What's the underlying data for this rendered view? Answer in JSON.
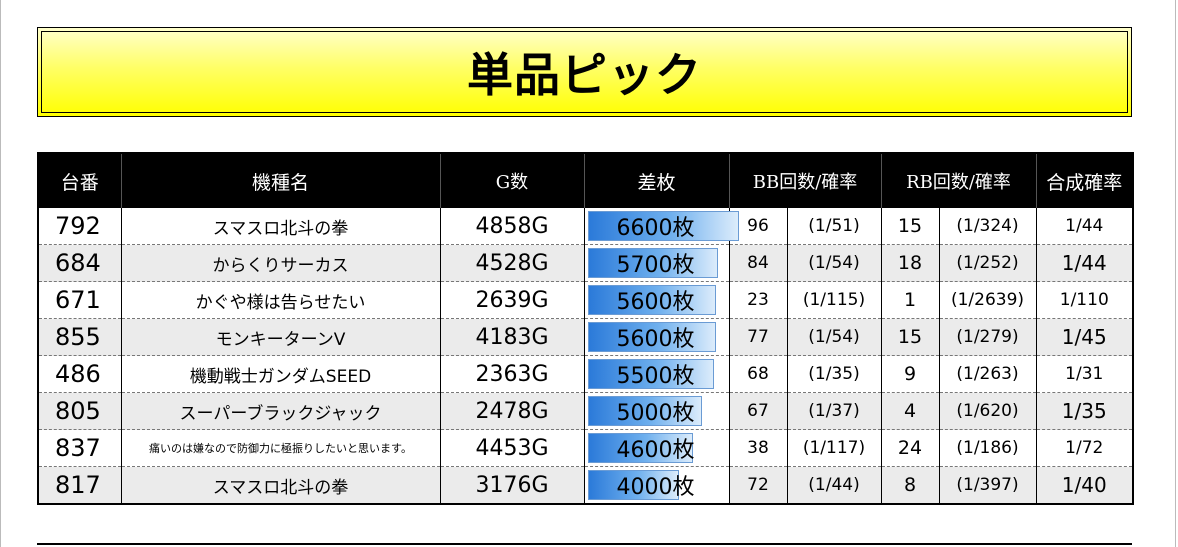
{
  "title": "単品ピック",
  "headers": {
    "dai": "台番",
    "machine": "機種名",
    "games": "G数",
    "diff": "差枚",
    "bb": "BB回数/確率",
    "rb": "RB回数/確率",
    "combined": "合成確率"
  },
  "diff_max": 7000,
  "rows": [
    {
      "dai": "792",
      "machine": "スマスロ北斗の拳",
      "games": "4858G",
      "diff": "6600枚",
      "diff_value": 6600,
      "bb": "96",
      "bb_rate": "(1/51)",
      "rb": "15",
      "rb_rate": "(1/324)",
      "combined": "1/44"
    },
    {
      "dai": "684",
      "machine": "からくりサーカス",
      "games": "4528G",
      "diff": "5700枚",
      "diff_value": 5700,
      "bb": "84",
      "bb_rate": "(1/54)",
      "rb": "18",
      "rb_rate": "(1/252)",
      "combined": "1/44"
    },
    {
      "dai": "671",
      "machine": "かぐや様は告らせたい",
      "games": "2639G",
      "diff": "5600枚",
      "diff_value": 5600,
      "bb": "23",
      "bb_rate": "(1/115)",
      "rb": "1",
      "rb_rate": "(1/2639)",
      "combined": "1/110"
    },
    {
      "dai": "855",
      "machine": "モンキーターンV",
      "games": "4183G",
      "diff": "5600枚",
      "diff_value": 5600,
      "bb": "77",
      "bb_rate": "(1/54)",
      "rb": "15",
      "rb_rate": "(1/279)",
      "combined": "1/45"
    },
    {
      "dai": "486",
      "machine": "機動戦士ガンダムSEED",
      "games": "2363G",
      "diff": "5500枚",
      "diff_value": 5500,
      "bb": "68",
      "bb_rate": "(1/35)",
      "rb": "9",
      "rb_rate": "(1/263)",
      "combined": "1/31"
    },
    {
      "dai": "805",
      "machine": "スーパーブラックジャック",
      "games": "2478G",
      "diff": "5000枚",
      "diff_value": 5000,
      "bb": "67",
      "bb_rate": "(1/37)",
      "rb": "4",
      "rb_rate": "(1/620)",
      "combined": "1/35"
    },
    {
      "dai": "837",
      "machine": "痛いのは嫌なので防御力に極振りしたいと思います。",
      "games": "4453G",
      "diff": "4600枚",
      "diff_value": 4600,
      "bb": "38",
      "bb_rate": "(1/117)",
      "rb": "24",
      "rb_rate": "(1/186)",
      "combined": "1/72"
    },
    {
      "dai": "817",
      "machine": "スマスロ北斗の拳",
      "games": "3176G",
      "diff": "4000枚",
      "diff_value": 4000,
      "bb": "72",
      "bb_rate": "(1/44)",
      "rb": "8",
      "rb_rate": "(1/397)",
      "combined": "1/40"
    }
  ]
}
